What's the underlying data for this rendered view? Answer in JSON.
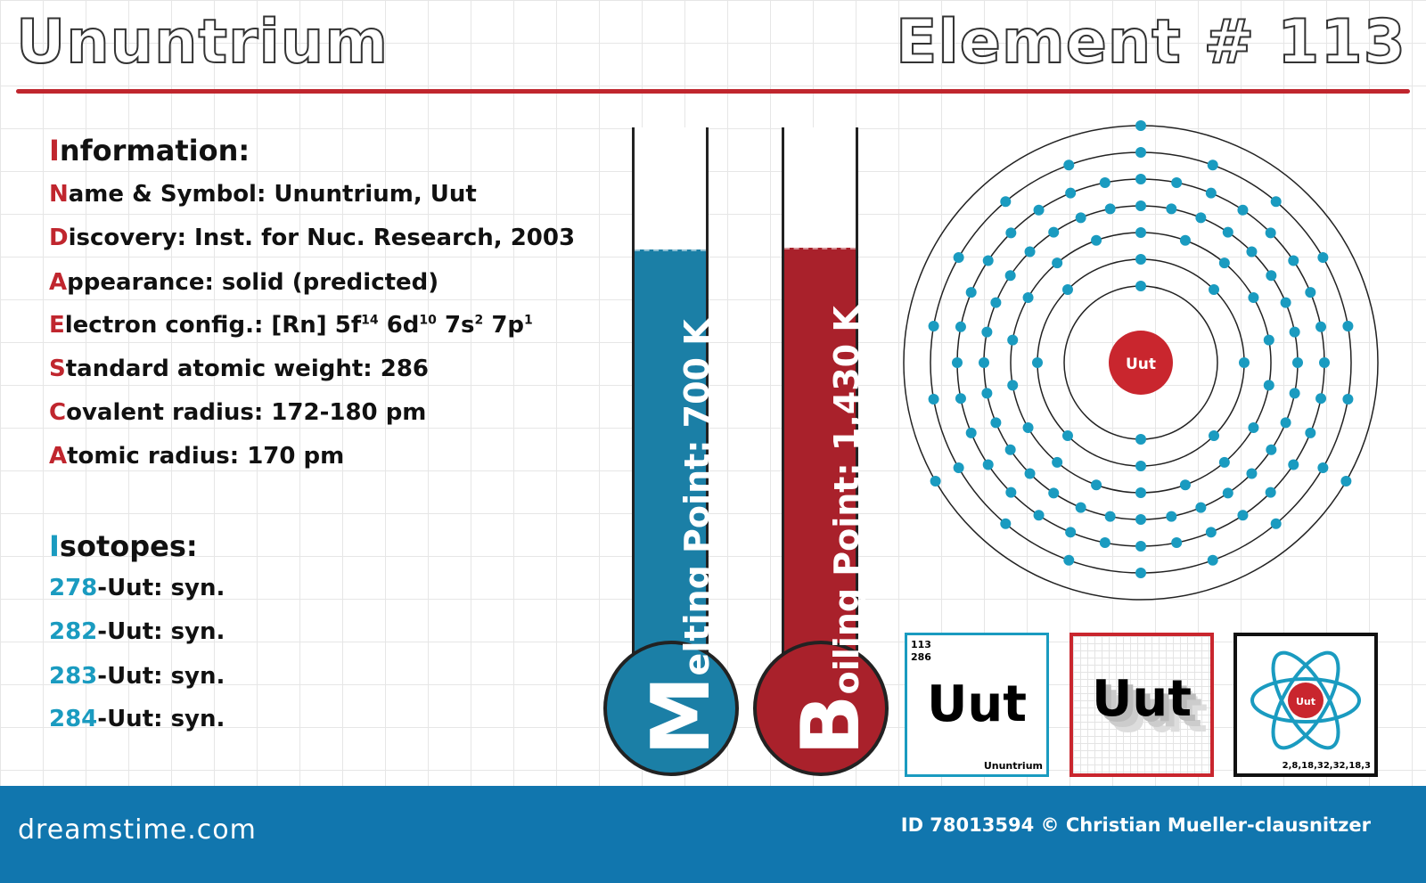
{
  "header": {
    "name": "Ununtrium",
    "element": "Element # 113"
  },
  "information": {
    "heading": "Information:",
    "name_symbol": "Name & Symbol: Ununtrium, Uut",
    "discovery": "Discovery: Inst. for Nuc. Research, 2003",
    "appearance": "Appearance: solid (predicted)",
    "electron_config": {
      "label": "Electron config.: [Rn] 5f",
      "s1": "14",
      "p2": " 6d",
      "s2": "10",
      "p3": " 7s",
      "s3": "2",
      "p4": " 7p",
      "s4": "1"
    },
    "atomic_weight": "Standard atomic weight: 286",
    "covalent_radius": "Covalent radius: 172-180 pm",
    "atomic_radius": "Atomic radius: 170 pm"
  },
  "isotopes": {
    "heading": "Isotopes:",
    "items": [
      {
        "mass": "278",
        "rest": "-Uut: syn."
      },
      {
        "mass": "282",
        "rest": "-Uut: syn."
      },
      {
        "mass": "283",
        "rest": "-Uut: syn."
      },
      {
        "mass": "284",
        "rest": "-Uut: syn."
      }
    ]
  },
  "thermometers": {
    "melting": {
      "initial": "M",
      "label": "elting Point: 700 K",
      "color": "#1b7fa6"
    },
    "boiling": {
      "initial": "B",
      "label": "oiling Point: 1,430 K",
      "color": "#a9212b"
    }
  },
  "atom": {
    "symbol": "Uut",
    "shells": [
      2,
      8,
      18,
      32,
      32,
      18,
      3
    ],
    "electron_color": "#1a9bc0",
    "nucleus_color": "#c9262e"
  },
  "cards": {
    "card1": {
      "number": "113",
      "weight": "286",
      "symbol": "Uut",
      "name": "Ununtrium"
    },
    "card2": {
      "symbol": "Uut"
    },
    "card3": {
      "symbol": "Uut",
      "shells": "2,8,18,32,32,18,3"
    }
  },
  "footer": {
    "brand": "dreamstime.com",
    "credit": "ID 78013594 © Christian Mueller-clausnitzer"
  }
}
